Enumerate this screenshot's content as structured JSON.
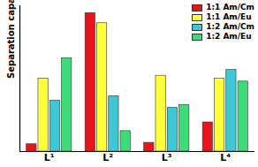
{
  "chart_data": {
    "type": "bar",
    "y_label": "Separation capacity",
    "categories": [
      "L¹",
      "L²",
      "L³",
      "L⁴"
    ],
    "series": [
      {
        "name": "1:1 Am/Cm",
        "color": "#e8141c",
        "values": [
          5,
          95,
          6,
          20
        ]
      },
      {
        "name": "1:1 Am/Eu",
        "color": "#ffff3a",
        "values": [
          50,
          88,
          52,
          50
        ]
      },
      {
        "name": "1:2 Am/Cm",
        "color": "#3ec8d6",
        "values": [
          35,
          38,
          30,
          56
        ]
      },
      {
        "name": "1:2 Am/Eu",
        "color": "#3ddc78",
        "values": [
          64,
          14,
          32,
          48
        ]
      }
    ],
    "ylim": [
      0,
      100
    ],
    "legend": "top-right",
    "tick_labels": "x"
  }
}
